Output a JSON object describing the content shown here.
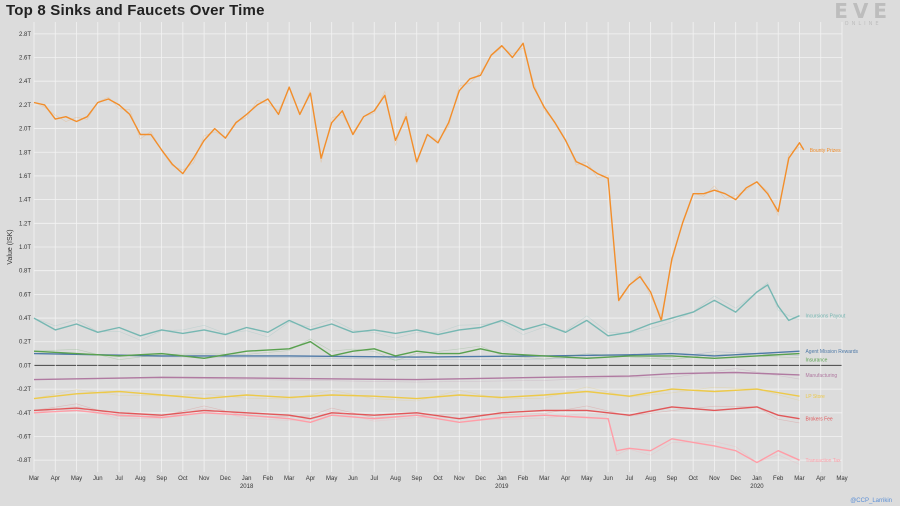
{
  "header": {
    "title": "Top 8 Sinks and Faucets Over Time",
    "logo_big": "EVE",
    "logo_small": "ONLINE"
  },
  "credit": "@CCP_Larrikin",
  "chart_data": {
    "type": "line",
    "title": "Top 8 Sinks and Faucets Over Time",
    "ylabel": "Value (ISK)",
    "xlabel": "",
    "ylim": [
      -0.9,
      2.9
    ],
    "yticks": [
      "-0.8T",
      "-0.6T",
      "-0.4T",
      "-0.2T",
      "0.0T",
      "0.2T",
      "0.4T",
      "0.6T",
      "0.8T",
      "1.0T",
      "1.2T",
      "1.4T",
      "1.6T",
      "1.8T",
      "2.0T",
      "2.2T",
      "2.4T",
      "2.6T",
      "2.8T"
    ],
    "ytick_values": [
      -0.8,
      -0.6,
      -0.4,
      -0.2,
      0,
      0.2,
      0.4,
      0.6,
      0.8,
      1.0,
      1.2,
      1.4,
      1.6,
      1.8,
      2.0,
      2.2,
      2.4,
      2.6,
      2.8
    ],
    "x_months": [
      "Mar",
      "Apr",
      "May",
      "Jun",
      "Jul",
      "Aug",
      "Sep",
      "Oct",
      "Nov",
      "Dec",
      "Jan",
      "Feb",
      "Mar",
      "Apr",
      "May",
      "Jun",
      "Jul",
      "Aug",
      "Sep",
      "Oct",
      "Nov",
      "Dec",
      "Jan",
      "Feb",
      "Mar",
      "Apr",
      "May",
      "Jun",
      "Jul",
      "Aug",
      "Sep",
      "Oct",
      "Nov",
      "Dec",
      "Jan",
      "Feb",
      "Mar",
      "Apr",
      "May"
    ],
    "year_labels": [
      {
        "index": 10,
        "label": "2018"
      },
      {
        "index": 22,
        "label": "2019"
      },
      {
        "index": 34,
        "label": "2020"
      }
    ],
    "grid": true,
    "x_start": 0,
    "x_end": 38,
    "series": [
      {
        "name": "Bounty Prizes",
        "color": "#f28e2b",
        "points": [
          [
            0,
            2.22
          ],
          [
            0.5,
            2.2
          ],
          [
            1,
            2.08
          ],
          [
            1.5,
            2.1
          ],
          [
            2,
            2.06
          ],
          [
            2.5,
            2.1
          ],
          [
            3,
            2.22
          ],
          [
            3.5,
            2.25
          ],
          [
            4,
            2.2
          ],
          [
            4.5,
            2.12
          ],
          [
            5,
            1.95
          ],
          [
            5.5,
            1.95
          ],
          [
            6,
            1.82
          ],
          [
            6.5,
            1.7
          ],
          [
            7,
            1.62
          ],
          [
            7.5,
            1.75
          ],
          [
            8,
            1.9
          ],
          [
            8.5,
            2.0
          ],
          [
            9,
            1.92
          ],
          [
            9.5,
            2.05
          ],
          [
            10,
            2.12
          ],
          [
            10.5,
            2.2
          ],
          [
            11,
            2.25
          ],
          [
            11.5,
            2.12
          ],
          [
            12,
            2.35
          ],
          [
            12.5,
            2.12
          ],
          [
            13,
            2.3
          ],
          [
            13.5,
            1.75
          ],
          [
            14,
            2.05
          ],
          [
            14.5,
            2.15
          ],
          [
            15,
            1.95
          ],
          [
            15.5,
            2.1
          ],
          [
            16,
            2.15
          ],
          [
            16.5,
            2.28
          ],
          [
            17,
            1.9
          ],
          [
            17.5,
            2.1
          ],
          [
            18,
            1.72
          ],
          [
            18.5,
            1.95
          ],
          [
            19,
            1.88
          ],
          [
            19.5,
            2.05
          ],
          [
            20,
            2.32
          ],
          [
            20.5,
            2.42
          ],
          [
            21,
            2.45
          ],
          [
            21.5,
            2.62
          ],
          [
            22,
            2.7
          ],
          [
            22.5,
            2.6
          ],
          [
            23,
            2.72
          ],
          [
            23.5,
            2.35
          ],
          [
            24,
            2.18
          ],
          [
            24.5,
            2.05
          ],
          [
            25,
            1.9
          ],
          [
            25.5,
            1.72
          ],
          [
            26,
            1.68
          ],
          [
            26.5,
            1.62
          ],
          [
            27,
            1.58
          ],
          [
            27.5,
            0.55
          ],
          [
            28,
            0.68
          ],
          [
            28.5,
            0.75
          ],
          [
            29,
            0.62
          ],
          [
            29.5,
            0.38
          ],
          [
            30,
            0.9
          ],
          [
            30.5,
            1.2
          ],
          [
            31,
            1.45
          ],
          [
            31.5,
            1.45
          ],
          [
            32,
            1.48
          ],
          [
            32.5,
            1.45
          ],
          [
            33,
            1.4
          ],
          [
            33.5,
            1.5
          ],
          [
            34,
            1.55
          ],
          [
            34.5,
            1.45
          ],
          [
            35,
            1.3
          ],
          [
            35.5,
            1.75
          ],
          [
            36,
            1.88
          ],
          [
            36.2,
            1.82
          ]
        ]
      },
      {
        "name": "Incursions Payout",
        "color": "#76b7b2",
        "points": [
          [
            0,
            0.4
          ],
          [
            1,
            0.3
          ],
          [
            2,
            0.35
          ],
          [
            3,
            0.28
          ],
          [
            4,
            0.32
          ],
          [
            5,
            0.25
          ],
          [
            6,
            0.3
          ],
          [
            7,
            0.27
          ],
          [
            8,
            0.3
          ],
          [
            9,
            0.26
          ],
          [
            10,
            0.32
          ],
          [
            11,
            0.28
          ],
          [
            12,
            0.38
          ],
          [
            13,
            0.3
          ],
          [
            14,
            0.35
          ],
          [
            15,
            0.28
          ],
          [
            16,
            0.3
          ],
          [
            17,
            0.27
          ],
          [
            18,
            0.3
          ],
          [
            19,
            0.26
          ],
          [
            20,
            0.3
          ],
          [
            21,
            0.32
          ],
          [
            22,
            0.38
          ],
          [
            23,
            0.3
          ],
          [
            24,
            0.35
          ],
          [
            25,
            0.28
          ],
          [
            26,
            0.38
          ],
          [
            27,
            0.25
          ],
          [
            28,
            0.28
          ],
          [
            29,
            0.35
          ],
          [
            30,
            0.4
          ],
          [
            31,
            0.45
          ],
          [
            32,
            0.55
          ],
          [
            33,
            0.45
          ],
          [
            34,
            0.62
          ],
          [
            34.5,
            0.68
          ],
          [
            35,
            0.5
          ],
          [
            35.5,
            0.38
          ],
          [
            36,
            0.42
          ]
        ]
      },
      {
        "name": "Agent Mission Rewards",
        "color": "#4e79a7",
        "points": [
          [
            0,
            0.1
          ],
          [
            6,
            0.08
          ],
          [
            12,
            0.08
          ],
          [
            18,
            0.07
          ],
          [
            24,
            0.08
          ],
          [
            28,
            0.09
          ],
          [
            30,
            0.1
          ],
          [
            32,
            0.08
          ],
          [
            34,
            0.1
          ],
          [
            36,
            0.12
          ]
        ]
      },
      {
        "name": "Insurance",
        "color": "#59a14f",
        "points": [
          [
            0,
            0.12
          ],
          [
            2,
            0.1
          ],
          [
            4,
            0.08
          ],
          [
            6,
            0.1
          ],
          [
            8,
            0.06
          ],
          [
            10,
            0.12
          ],
          [
            12,
            0.14
          ],
          [
            13,
            0.2
          ],
          [
            14,
            0.08
          ],
          [
            15,
            0.12
          ],
          [
            16,
            0.14
          ],
          [
            17,
            0.08
          ],
          [
            18,
            0.12
          ],
          [
            19,
            0.1
          ],
          [
            20,
            0.1
          ],
          [
            21,
            0.14
          ],
          [
            22,
            0.1
          ],
          [
            24,
            0.08
          ],
          [
            26,
            0.06
          ],
          [
            28,
            0.08
          ],
          [
            30,
            0.08
          ],
          [
            32,
            0.06
          ],
          [
            34,
            0.08
          ],
          [
            36,
            0.1
          ]
        ]
      },
      {
        "name": "Manufacturing",
        "color": "#b07aa1",
        "points": [
          [
            0,
            -0.12
          ],
          [
            6,
            -0.1
          ],
          [
            12,
            -0.11
          ],
          [
            18,
            -0.12
          ],
          [
            24,
            -0.1
          ],
          [
            28,
            -0.09
          ],
          [
            30,
            -0.07
          ],
          [
            33,
            -0.06
          ],
          [
            36,
            -0.08
          ]
        ]
      },
      {
        "name": "LP Store",
        "color": "#edc948",
        "points": [
          [
            0,
            -0.28
          ],
          [
            2,
            -0.24
          ],
          [
            4,
            -0.22
          ],
          [
            6,
            -0.25
          ],
          [
            8,
            -0.28
          ],
          [
            10,
            -0.25
          ],
          [
            12,
            -0.27
          ],
          [
            14,
            -0.25
          ],
          [
            16,
            -0.26
          ],
          [
            18,
            -0.28
          ],
          [
            20,
            -0.25
          ],
          [
            22,
            -0.27
          ],
          [
            24,
            -0.25
          ],
          [
            26,
            -0.22
          ],
          [
            28,
            -0.26
          ],
          [
            30,
            -0.2
          ],
          [
            32,
            -0.22
          ],
          [
            34,
            -0.2
          ],
          [
            36,
            -0.26
          ]
        ]
      },
      {
        "name": "Brokers Fee",
        "color": "#e15759",
        "points": [
          [
            0,
            -0.38
          ],
          [
            2,
            -0.36
          ],
          [
            4,
            -0.4
          ],
          [
            6,
            -0.42
          ],
          [
            8,
            -0.38
          ],
          [
            10,
            -0.4
          ],
          [
            12,
            -0.42
          ],
          [
            13,
            -0.45
          ],
          [
            14,
            -0.4
          ],
          [
            16,
            -0.42
          ],
          [
            18,
            -0.4
          ],
          [
            20,
            -0.45
          ],
          [
            22,
            -0.4
          ],
          [
            24,
            -0.38
          ],
          [
            26,
            -0.38
          ],
          [
            28,
            -0.42
          ],
          [
            30,
            -0.35
          ],
          [
            32,
            -0.38
          ],
          [
            34,
            -0.35
          ],
          [
            35,
            -0.42
          ],
          [
            36,
            -0.45
          ]
        ]
      },
      {
        "name": "Transaction Tax",
        "color": "#ff9da7",
        "points": [
          [
            0,
            -0.4
          ],
          [
            2,
            -0.38
          ],
          [
            4,
            -0.42
          ],
          [
            6,
            -0.44
          ],
          [
            8,
            -0.4
          ],
          [
            10,
            -0.42
          ],
          [
            12,
            -0.45
          ],
          [
            13,
            -0.48
          ],
          [
            14,
            -0.42
          ],
          [
            16,
            -0.45
          ],
          [
            18,
            -0.42
          ],
          [
            20,
            -0.48
          ],
          [
            22,
            -0.44
          ],
          [
            24,
            -0.42
          ],
          [
            26,
            -0.44
          ],
          [
            27,
            -0.45
          ],
          [
            27.4,
            -0.72
          ],
          [
            28,
            -0.7
          ],
          [
            29,
            -0.72
          ],
          [
            30,
            -0.62
          ],
          [
            31,
            -0.65
          ],
          [
            32,
            -0.68
          ],
          [
            33,
            -0.72
          ],
          [
            34,
            -0.82
          ],
          [
            35,
            -0.72
          ],
          [
            36,
            -0.8
          ]
        ]
      }
    ]
  }
}
